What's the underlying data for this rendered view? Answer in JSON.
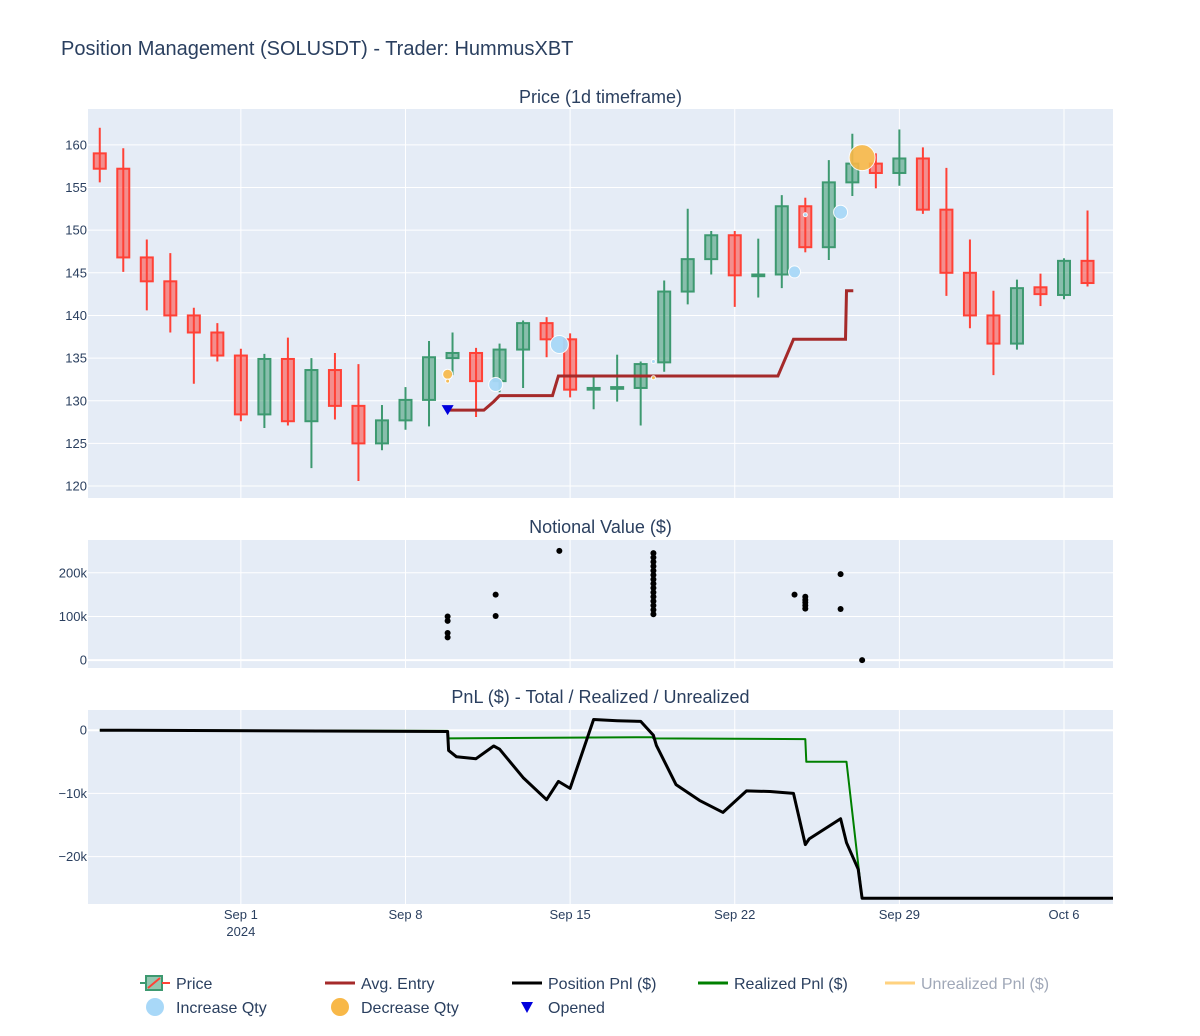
{
  "title": "Position Management (SOLUSDT) - Trader: HummusXBT",
  "colors": {
    "increasing": "#3d9970",
    "decreasing": "#ff4136",
    "avg_entry": "#a52a2a",
    "position_pnl": "#000000",
    "realized_pnl": "#008000",
    "unrealized_pnl": "#ffd27f",
    "increase_qty": "#a8d8f8",
    "decrease_qty": "#f8b848",
    "opened": "#0000dd",
    "plot_bg": "#e5ecf6",
    "grid": "#ffffff"
  },
  "x_axis": {
    "ticks": [
      {
        "date": "2024-09-01",
        "label": "Sep 1",
        "sublabel": "2024"
      },
      {
        "date": "2024-09-08",
        "label": "Sep 8",
        "sublabel": ""
      },
      {
        "date": "2024-09-15",
        "label": "Sep 15",
        "sublabel": ""
      },
      {
        "date": "2024-09-22",
        "label": "Sep 22",
        "sublabel": ""
      },
      {
        "date": "2024-09-29",
        "label": "Sep 29",
        "sublabel": ""
      },
      {
        "date": "2024-10-06",
        "label": "Oct 6",
        "sublabel": ""
      }
    ],
    "range": [
      "2024-08-25T12:00",
      "2024-10-08T02:00"
    ]
  },
  "legend": [
    {
      "key": "price",
      "label": "Price",
      "symbol": "candle"
    },
    {
      "key": "avg_entry",
      "label": "Avg. Entry",
      "symbol": "line"
    },
    {
      "key": "position_pnl",
      "label": "Position Pnl ($)",
      "symbol": "line"
    },
    {
      "key": "realized_pnl",
      "label": "Realized Pnl ($)",
      "symbol": "line"
    },
    {
      "key": "unrealized_pnl",
      "label": "Unrealized Pnl ($)",
      "symbol": "line",
      "dimmed": true
    },
    {
      "key": "increase_qty",
      "label": "Increase Qty",
      "symbol": "circle"
    },
    {
      "key": "decrease_qty",
      "label": "Decrease Qty",
      "symbol": "circle"
    },
    {
      "key": "opened",
      "label": "Opened",
      "symbol": "triangle-down"
    }
  ],
  "chart_data": [
    {
      "type": "candlestick",
      "title": "Price (1d timeframe)",
      "ylim": [
        118.6,
        164.2
      ],
      "yticks": [
        120,
        125,
        130,
        135,
        140,
        145,
        150,
        155,
        160
      ],
      "candles": [
        {
          "date": "2024-08-26",
          "open": 159.0,
          "high": 162.0,
          "low": 155.6,
          "close": 157.2
        },
        {
          "date": "2024-08-27",
          "open": 157.2,
          "high": 159.6,
          "low": 145.1,
          "close": 146.8
        },
        {
          "date": "2024-08-28",
          "open": 146.8,
          "high": 148.9,
          "low": 140.6,
          "close": 144.0
        },
        {
          "date": "2024-08-29",
          "open": 144.0,
          "high": 147.3,
          "low": 138.0,
          "close": 140.0
        },
        {
          "date": "2024-08-30",
          "open": 140.0,
          "high": 140.9,
          "low": 132.0,
          "close": 138.0
        },
        {
          "date": "2024-08-31",
          "open": 138.0,
          "high": 139.1,
          "low": 134.6,
          "close": 135.3
        },
        {
          "date": "2024-09-01",
          "open": 135.3,
          "high": 136.1,
          "low": 127.6,
          "close": 128.4
        },
        {
          "date": "2024-09-02",
          "open": 128.4,
          "high": 135.5,
          "low": 126.8,
          "close": 134.9
        },
        {
          "date": "2024-09-03",
          "open": 134.9,
          "high": 137.4,
          "low": 127.1,
          "close": 127.6
        },
        {
          "date": "2024-09-04",
          "open": 127.6,
          "high": 135.0,
          "low": 122.1,
          "close": 133.6
        },
        {
          "date": "2024-09-05",
          "open": 133.6,
          "high": 135.6,
          "low": 127.8,
          "close": 129.4
        },
        {
          "date": "2024-09-06",
          "open": 129.4,
          "high": 134.3,
          "low": 120.6,
          "close": 125.0
        },
        {
          "date": "2024-09-07",
          "open": 125.0,
          "high": 129.5,
          "low": 124.2,
          "close": 127.7
        },
        {
          "date": "2024-09-08",
          "open": 127.7,
          "high": 131.6,
          "low": 126.6,
          "close": 130.1
        },
        {
          "date": "2024-09-09",
          "open": 130.1,
          "high": 137.0,
          "low": 127.0,
          "close": 135.1
        },
        {
          "date": "2024-09-10",
          "open": 135.0,
          "high": 138.0,
          "low": 133.0,
          "close": 135.6
        },
        {
          "date": "2024-09-11",
          "open": 135.6,
          "high": 136.2,
          "low": 128.1,
          "close": 132.3
        },
        {
          "date": "2024-09-12",
          "open": 132.3,
          "high": 136.7,
          "low": 131.0,
          "close": 136.0
        },
        {
          "date": "2024-09-13",
          "open": 136.0,
          "high": 139.4,
          "low": 131.5,
          "close": 139.1
        },
        {
          "date": "2024-09-14",
          "open": 139.1,
          "high": 139.8,
          "low": 135.1,
          "close": 137.2
        },
        {
          "date": "2024-09-15",
          "open": 137.2,
          "high": 137.9,
          "low": 130.4,
          "close": 131.3
        },
        {
          "date": "2024-09-16",
          "open": 131.3,
          "high": 133.0,
          "low": 129.0,
          "close": 131.5
        },
        {
          "date": "2024-09-17",
          "open": 131.4,
          "high": 135.4,
          "low": 129.9,
          "close": 131.6
        },
        {
          "date": "2024-09-18",
          "open": 131.5,
          "high": 134.6,
          "low": 127.1,
          "close": 134.3
        },
        {
          "date": "2024-09-19",
          "open": 134.5,
          "high": 144.1,
          "low": 133.4,
          "close": 142.8
        },
        {
          "date": "2024-09-20",
          "open": 142.8,
          "high": 152.5,
          "low": 141.3,
          "close": 146.6
        },
        {
          "date": "2024-09-21",
          "open": 146.6,
          "high": 149.9,
          "low": 144.8,
          "close": 149.4
        },
        {
          "date": "2024-09-22",
          "open": 149.4,
          "high": 149.9,
          "low": 141.0,
          "close": 144.7
        },
        {
          "date": "2024-09-23",
          "open": 144.6,
          "high": 149.0,
          "low": 142.1,
          "close": 144.8
        },
        {
          "date": "2024-09-24",
          "open": 144.8,
          "high": 154.1,
          "low": 143.2,
          "close": 152.8
        },
        {
          "date": "2024-09-25",
          "open": 152.8,
          "high": 153.8,
          "low": 147.4,
          "close": 148.0
        },
        {
          "date": "2024-09-26",
          "open": 148.0,
          "high": 158.2,
          "low": 146.5,
          "close": 155.6
        },
        {
          "date": "2024-09-27",
          "open": 155.6,
          "high": 161.3,
          "low": 154.0,
          "close": 157.8
        },
        {
          "date": "2024-09-28",
          "open": 157.8,
          "high": 159.0,
          "low": 154.9,
          "close": 156.7
        },
        {
          "date": "2024-09-29",
          "open": 156.7,
          "high": 161.8,
          "low": 155.2,
          "close": 158.4
        },
        {
          "date": "2024-09-30",
          "open": 158.4,
          "high": 159.7,
          "low": 151.9,
          "close": 152.4
        },
        {
          "date": "2024-10-01",
          "open": 152.4,
          "high": 157.3,
          "low": 142.3,
          "close": 145.0
        },
        {
          "date": "2024-10-02",
          "open": 145.0,
          "high": 148.9,
          "low": 138.5,
          "close": 140.0
        },
        {
          "date": "2024-10-03",
          "open": 140.0,
          "high": 142.9,
          "low": 133.0,
          "close": 136.7
        },
        {
          "date": "2024-10-04",
          "open": 136.7,
          "high": 144.2,
          "low": 136.0,
          "close": 143.2
        },
        {
          "date": "2024-10-05",
          "open": 143.3,
          "high": 144.9,
          "low": 141.1,
          "close": 142.5
        },
        {
          "date": "2024-10-06",
          "open": 142.4,
          "high": 146.7,
          "low": 141.9,
          "close": 146.4
        },
        {
          "date": "2024-10-07",
          "open": 146.4,
          "high": 152.3,
          "low": 143.4,
          "close": 143.8
        }
      ],
      "avg_entry": {
        "x": [
          "2024-09-09T19:00",
          "2024-09-11T08:00",
          "2024-09-11T18:00",
          "2024-09-12T00:00",
          "2024-09-14T06:00",
          "2024-09-14T12:00",
          "2024-09-23T20:00",
          "2024-09-24T12:00",
          "2024-09-26T17:00",
          "2024-09-26T18:00",
          "2024-09-27T01:00"
        ],
        "y": [
          128.9,
          128.9,
          129.9,
          130.6,
          130.6,
          132.9,
          132.9,
          137.2,
          137.2,
          142.9,
          142.9
        ]
      },
      "increase_qty": [
        {
          "date": "2024-09-11T20:00",
          "price": 131.9,
          "size": 14
        },
        {
          "date": "2024-09-14T13:00",
          "price": 136.6,
          "size": 18
        },
        {
          "date": "2024-09-18T13:00",
          "price": 134.6,
          "size": 4
        },
        {
          "date": "2024-09-24T13:00",
          "price": 145.1,
          "size": 12
        },
        {
          "date": "2024-09-25T00:00",
          "price": 151.8,
          "size": 4
        },
        {
          "date": "2024-09-26T12:00",
          "price": 152.1,
          "size": 14
        }
      ],
      "decrease_qty": [
        {
          "date": "2024-09-09T19:00",
          "price": 133.1,
          "size": 10
        },
        {
          "date": "2024-09-09T19:00",
          "price": 132.3,
          "size": 4
        },
        {
          "date": "2024-09-18T13:00",
          "price": 132.7,
          "size": 4
        },
        {
          "date": "2024-09-27T10:00",
          "price": 158.5,
          "size": 26
        }
      ],
      "opened": [
        {
          "date": "2024-09-09T19:00",
          "price": 128.9
        }
      ]
    },
    {
      "type": "scatter",
      "title": "Notional Value ($)",
      "ylim": [
        -18000,
        275000
      ],
      "yticks": [
        0,
        100000,
        200000
      ],
      "yticklabels": [
        "0",
        "100k",
        "200k"
      ],
      "x": [
        "2024-09-09T19:00",
        "2024-09-09T19:00",
        "2024-09-09T19:00",
        "2024-09-09T19:00",
        "2024-09-11T20:00",
        "2024-09-11T20:00",
        "2024-09-14T13:00",
        "2024-09-18T13:00",
        "2024-09-18T13:00",
        "2024-09-18T13:00",
        "2024-09-18T13:00",
        "2024-09-18T13:00",
        "2024-09-18T13:00",
        "2024-09-18T13:00",
        "2024-09-18T13:00",
        "2024-09-18T13:00",
        "2024-09-18T13:00",
        "2024-09-18T13:00",
        "2024-09-18T13:00",
        "2024-09-18T13:00",
        "2024-09-18T13:00",
        "2024-09-18T13:00",
        "2024-09-24T13:00",
        "2024-09-25T00:00",
        "2024-09-25T00:00",
        "2024-09-25T00:00",
        "2024-09-25T00:00",
        "2024-09-25T00:00",
        "2024-09-26T12:00",
        "2024-09-26T12:00",
        "2024-09-27T10:00"
      ],
      "y": [
        100000,
        90000,
        62000,
        52000,
        150000,
        101000,
        250000,
        245000,
        235000,
        225000,
        215000,
        205000,
        195000,
        185000,
        175000,
        165000,
        155000,
        145000,
        135000,
        125000,
        115000,
        105000,
        150000,
        145000,
        138000,
        132000,
        125000,
        118000,
        197000,
        117000,
        0
      ]
    },
    {
      "type": "line",
      "title": "PnL ($) - Total / Realized / Unrealized",
      "ylim": [
        -27500,
        3200
      ],
      "yticks": [
        0,
        -10000,
        -20000
      ],
      "yticklabels": [
        "0",
        "−10k",
        "−20k"
      ],
      "series": [
        {
          "name": "Position Pnl ($)",
          "x": [
            "2024-08-26T00:00",
            "2024-09-09T19:00",
            "2024-09-09T20:00",
            "2024-09-10T04:00",
            "2024-09-11T00:00",
            "2024-09-11T18:00",
            "2024-09-12T00:00",
            "2024-09-13T00:00",
            "2024-09-14T00:00",
            "2024-09-14T12:00",
            "2024-09-15T00:00",
            "2024-09-16T00:00",
            "2024-09-17T00:00",
            "2024-09-18T00:00",
            "2024-09-18T13:00",
            "2024-09-18T16:00",
            "2024-09-19T12:00",
            "2024-09-20T12:00",
            "2024-09-21T12:00",
            "2024-09-22T12:00",
            "2024-09-23T12:00",
            "2024-09-24T12:00",
            "2024-09-25T00:00",
            "2024-09-25T04:00",
            "2024-09-26T12:00",
            "2024-09-26T18:00",
            "2024-09-27T06:00",
            "2024-09-27T10:00",
            "2024-10-08T02:00"
          ],
          "y": [
            0,
            -200,
            -3200,
            -4200,
            -4500,
            -2500,
            -3000,
            -7500,
            -11000,
            -8100,
            -9200,
            1700,
            1500,
            1400,
            -800,
            -2400,
            -8600,
            -11100,
            -13000,
            -9600,
            -9700,
            -10000,
            -18100,
            -17200,
            -14000,
            -17800,
            -22000,
            -26600,
            -26600
          ]
        },
        {
          "name": "Realized Pnl ($)",
          "x": [
            "2024-08-26T00:00",
            "2024-09-09T19:00",
            "2024-09-09T20:00",
            "2024-09-18T12:00",
            "2024-09-18T13:00",
            "2024-09-25T00:00",
            "2024-09-25T01:00",
            "2024-09-26T18:00",
            "2024-09-27T10:00",
            "2024-10-08T02:00"
          ],
          "y": [
            0,
            -100,
            -1300,
            -1100,
            -1300,
            -1400,
            -5000,
            -5000,
            -26600,
            -26600
          ]
        }
      ]
    }
  ]
}
